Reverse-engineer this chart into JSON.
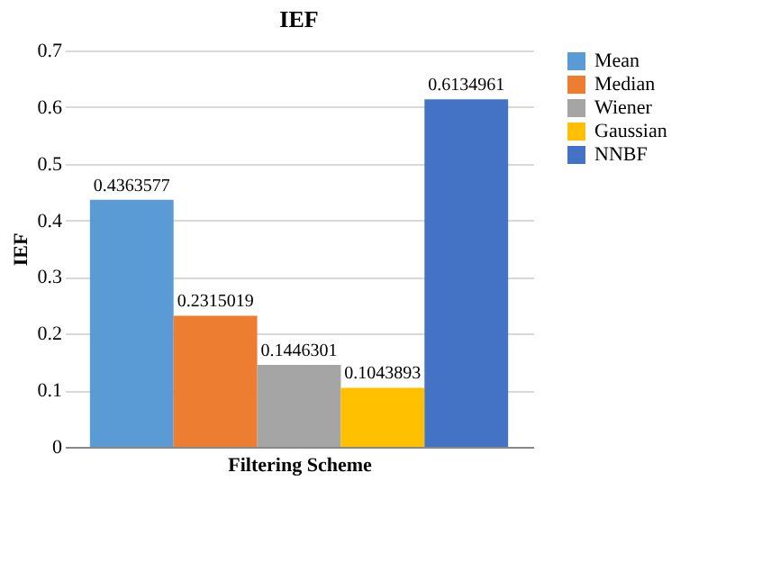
{
  "chart_data": {
    "type": "bar",
    "title": "IEF",
    "xlabel": "Filtering Scheme",
    "ylabel": "IEF",
    "categories": [
      null
    ],
    "series": [
      {
        "name": "Mean",
        "color": "#5b9bd5",
        "values": [
          0.4363577
        ]
      },
      {
        "name": "Median",
        "color": "#ed7d31",
        "values": [
          0.2315019
        ]
      },
      {
        "name": "Wiener",
        "color": "#a5a5a5",
        "values": [
          0.1446301
        ]
      },
      {
        "name": "Gaussian",
        "color": "#ffc000",
        "values": [
          0.1043893
        ]
      },
      {
        "name": "NNBF",
        "color": "#4472c4",
        "values": [
          0.6134961
        ]
      }
    ],
    "ylim": [
      0,
      0.7
    ],
    "yticks": [
      0,
      0.1,
      0.2,
      0.3,
      0.4,
      0.5,
      0.6,
      0.7
    ],
    "grid": "y",
    "legend": "right",
    "data_labels": true
  }
}
